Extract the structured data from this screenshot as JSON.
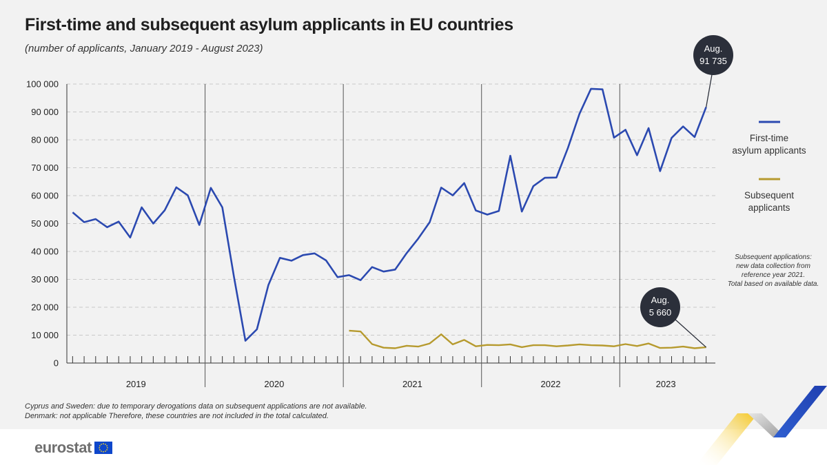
{
  "title": "First-time and subsequent asylum applicants in EU countries",
  "subtitle": "(number of applicants, January 2019 - August 2023)",
  "footnotes": [
    "Cyprus and Sweden: due to temporary derogations data on subsequent applications are not available.",
    "Denmark: not applicable Therefore, these countries are not included in the total calculated."
  ],
  "side_note": [
    "Subsequent applications:",
    "new data collection from",
    "reference year 2021.",
    "Total based on available data."
  ],
  "legend": {
    "first_time": [
      "First-time",
      "asylum applicants"
    ],
    "subsequent": [
      "Subsequent",
      "applicants"
    ]
  },
  "callouts": {
    "first_time": [
      "Aug.",
      "91 735"
    ],
    "subsequent": [
      "Aug.",
      "5 660"
    ]
  },
  "logo": {
    "text": "eurostat",
    "icon": "eu-flag-icon"
  },
  "colors": {
    "first_time": "#2b49b0",
    "subsequent": "#b69a2e",
    "callout_bg": "#2b2f3a",
    "panel_bg": "#f2f2f2"
  },
  "chart_data": {
    "type": "line",
    "x_start": "2019-01",
    "x_end": "2023-08",
    "years": [
      "2019",
      "2020",
      "2021",
      "2022",
      "2023"
    ],
    "ylim": [
      0,
      100000
    ],
    "y_ticks": [
      "0",
      "10 000",
      "20 000",
      "30 000",
      "40 000",
      "50 000",
      "60 000",
      "70 000",
      "80 000",
      "90 000",
      "100 000"
    ],
    "series": [
      {
        "name": "First-time asylum applicants",
        "start": "2019-01",
        "values": [
          54000,
          50500,
          51600,
          48700,
          50700,
          45000,
          55800,
          50000,
          54800,
          63000,
          60100,
          49500,
          62800,
          55800,
          31000,
          8000,
          12100,
          28000,
          37700,
          36700,
          38700,
          39300,
          36800,
          30800,
          31500,
          29700,
          34400,
          32800,
          33500,
          39400,
          44600,
          50500,
          62900,
          60100,
          64500,
          54700,
          53200,
          54500,
          74300,
          54300,
          63400,
          66400,
          66500,
          77100,
          89300,
          98300,
          98100,
          80800,
          83600,
          74500,
          84200,
          68800,
          80700,
          84800,
          81000,
          91735
        ]
      },
      {
        "name": "Subsequent applicants",
        "start": "2021-01",
        "values": [
          11600,
          11300,
          6800,
          5500,
          5300,
          6200,
          5900,
          7000,
          10300,
          6700,
          8300,
          6000,
          6500,
          6400,
          6700,
          5700,
          6400,
          6400,
          6000,
          6300,
          6700,
          6400,
          6300,
          6000,
          6800,
          6100,
          7000,
          5400,
          5500,
          5900,
          5300,
          5660
        ]
      }
    ],
    "grid": "horizontal dashed"
  }
}
